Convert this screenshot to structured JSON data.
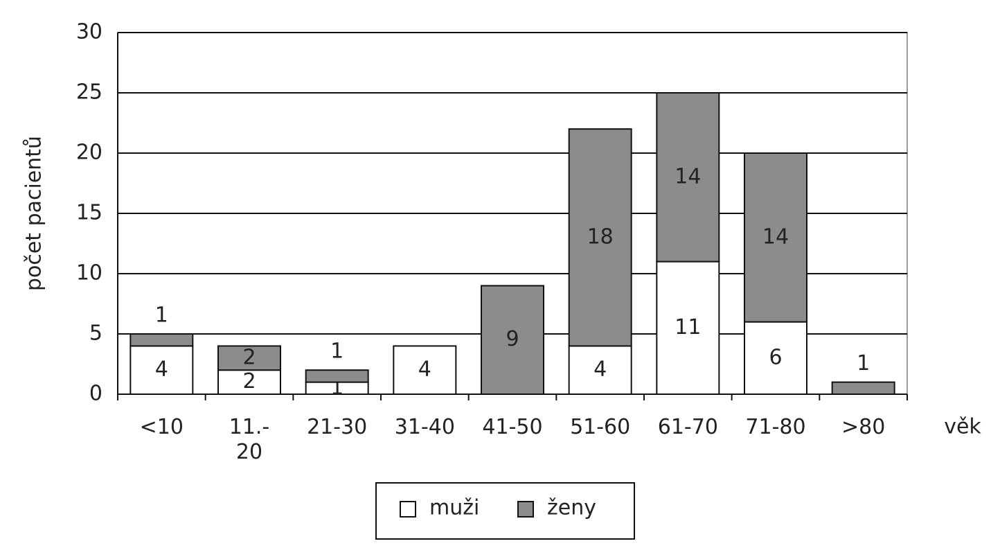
{
  "chart_data": {
    "type": "stacked_bar",
    "ylabel": "počet pacientů",
    "xlabel": "věk",
    "categories": [
      "<10",
      "11.- 20",
      "21-30",
      "31-40",
      "41-50",
      "51-60",
      "61-70",
      "71-80",
      ">80"
    ],
    "series": [
      {
        "name": "muži",
        "color": "#ffffff",
        "values": [
          4,
          2,
          1,
          4,
          null,
          4,
          11,
          6,
          null
        ]
      },
      {
        "name": "ženy",
        "color": "#8c8c8c",
        "values": [
          1,
          2,
          1,
          null,
          9,
          18,
          14,
          14,
          1
        ]
      }
    ],
    "ylim": [
      0,
      30
    ],
    "yticks": [
      0,
      5,
      10,
      15,
      20,
      25,
      30
    ],
    "grid": true
  }
}
